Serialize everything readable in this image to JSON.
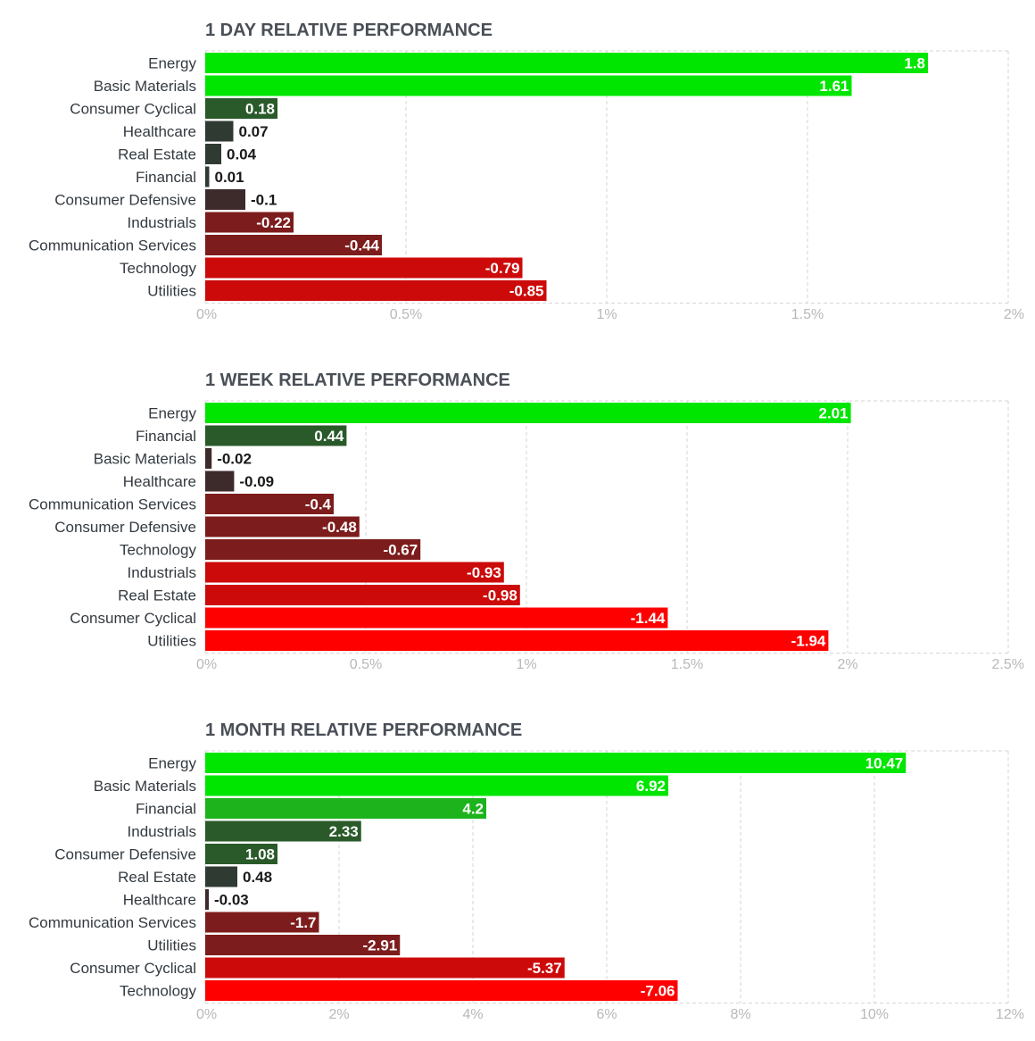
{
  "colors": {
    "grid": "#d6d6d6",
    "pos_strong": "#00e600",
    "pos_mid": "#1db31d",
    "pos_weak": "#2a5a2a",
    "neutral": "#2f3a33",
    "neg_weak": "#3d2a2a",
    "neg_mid": "#7d1c1c",
    "neg_strong": "#cc0a0a",
    "neg_max": "#ff0000"
  },
  "chart_data": [
    {
      "type": "bar",
      "orientation": "horizontal",
      "title": "1 DAY RELATIVE PERFORMANCE",
      "categories": [
        "Energy",
        "Basic Materials",
        "Consumer Cyclical",
        "Healthcare",
        "Real Estate",
        "Financial",
        "Consumer Defensive",
        "Industrials",
        "Communication Services",
        "Technology",
        "Utilities"
      ],
      "values": [
        1.8,
        1.61,
        0.18,
        0.07,
        0.04,
        0.01,
        -0.1,
        -0.22,
        -0.44,
        -0.79,
        -0.85
      ],
      "value_labels": [
        "1.8",
        "1.61",
        "0.18",
        "0.07",
        "0.04",
        "0.01",
        "-0.1",
        "-0.22",
        "-0.44",
        "-0.79",
        "-0.85"
      ],
      "xlim": [
        0,
        2
      ],
      "xticks": [
        0,
        0.5,
        1,
        1.5,
        2
      ],
      "xtick_labels": [
        "0%",
        "0.5%",
        "1%",
        "1.5%",
        "2%"
      ],
      "xlabel": "",
      "ylabel": "",
      "grid": true
    },
    {
      "type": "bar",
      "orientation": "horizontal",
      "title": "1 WEEK RELATIVE PERFORMANCE",
      "categories": [
        "Energy",
        "Financial",
        "Basic Materials",
        "Healthcare",
        "Communication Services",
        "Consumer Defensive",
        "Technology",
        "Industrials",
        "Real Estate",
        "Consumer Cyclical",
        "Utilities"
      ],
      "values": [
        2.01,
        0.44,
        -0.02,
        -0.09,
        -0.4,
        -0.48,
        -0.67,
        -0.93,
        -0.98,
        -1.44,
        -1.94
      ],
      "value_labels": [
        "2.01",
        "0.44",
        "-0.02",
        "-0.09",
        "-0.4",
        "-0.48",
        "-0.67",
        "-0.93",
        "-0.98",
        "-1.44",
        "-1.94"
      ],
      "xlim": [
        0,
        2.5
      ],
      "xticks": [
        0,
        0.5,
        1,
        1.5,
        2,
        2.5
      ],
      "xtick_labels": [
        "0%",
        "0.5%",
        "1%",
        "1.5%",
        "2%",
        "2.5%"
      ],
      "xlabel": "",
      "ylabel": "",
      "grid": true
    },
    {
      "type": "bar",
      "orientation": "horizontal",
      "title": "1 MONTH RELATIVE PERFORMANCE",
      "categories": [
        "Energy",
        "Basic Materials",
        "Financial",
        "Industrials",
        "Consumer Defensive",
        "Real Estate",
        "Healthcare",
        "Communication Services",
        "Utilities",
        "Consumer Cyclical",
        "Technology"
      ],
      "values": [
        10.47,
        6.92,
        4.2,
        2.33,
        1.08,
        0.48,
        -0.03,
        -1.7,
        -2.91,
        -5.37,
        -7.06
      ],
      "value_labels": [
        "10.47",
        "6.92",
        "4.2",
        "2.33",
        "1.08",
        "0.48",
        "-0.03",
        "-1.7",
        "-2.91",
        "-5.37",
        "-7.06"
      ],
      "xlim": [
        0,
        12
      ],
      "xticks": [
        0,
        2,
        4,
        6,
        8,
        10,
        12
      ],
      "xtick_labels": [
        "0%",
        "2%",
        "4%",
        "6%",
        "8%",
        "10%",
        "12%"
      ],
      "xlabel": "",
      "ylabel": "",
      "grid": true
    }
  ]
}
